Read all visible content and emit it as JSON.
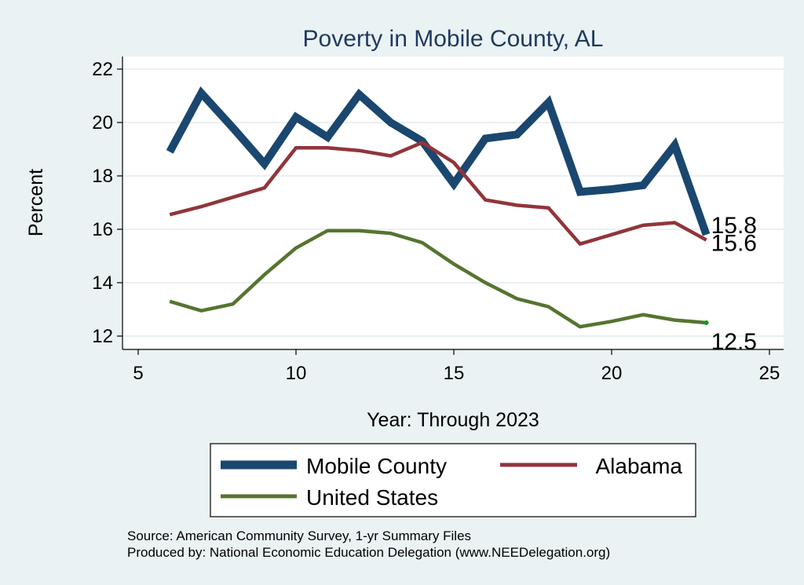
{
  "chart_data": {
    "type": "line",
    "title": "Poverty in Mobile County, AL",
    "xlabel": "Year: Through 2023",
    "ylabel": "Percent",
    "xlim": [
      5,
      25
    ],
    "ylim": [
      11.6,
      22.4
    ],
    "xticks": [
      5,
      10,
      15,
      20,
      25
    ],
    "yticks": [
      12,
      14,
      16,
      18,
      20,
      22
    ],
    "grid": true,
    "legend_position": "bottom",
    "series": [
      {
        "name": "Mobile County",
        "color": "#1a476f",
        "x": [
          6,
          7,
          8,
          9,
          10,
          11,
          12,
          13,
          14,
          15,
          16,
          17,
          18,
          19,
          20,
          21,
          22,
          23
        ],
        "values": [
          18.9,
          21.1,
          19.8,
          18.45,
          20.2,
          19.45,
          21.05,
          20.0,
          19.3,
          17.7,
          19.4,
          19.55,
          20.75,
          17.4,
          17.5,
          17.65,
          19.15,
          15.8
        ],
        "end_label": "15.8"
      },
      {
        "name": "Alabama",
        "color": "#90353b",
        "x": [
          6,
          7,
          8,
          9,
          10,
          11,
          12,
          13,
          14,
          15,
          16,
          17,
          18,
          19,
          20,
          21,
          22,
          23
        ],
        "values": [
          16.55,
          16.85,
          17.2,
          17.55,
          19.05,
          19.05,
          18.95,
          18.75,
          19.25,
          18.5,
          17.1,
          16.9,
          16.8,
          15.45,
          15.8,
          16.15,
          16.25,
          15.6
        ],
        "end_label": "15.6"
      },
      {
        "name": "United States",
        "color": "#55752f",
        "x": [
          6,
          7,
          8,
          9,
          10,
          11,
          12,
          13,
          14,
          15,
          16,
          17,
          18,
          19,
          20,
          21,
          22,
          23
        ],
        "values": [
          13.3,
          12.95,
          13.2,
          14.3,
          15.3,
          15.95,
          15.95,
          15.85,
          15.5,
          14.7,
          14.0,
          13.4,
          13.1,
          12.35,
          12.55,
          12.8,
          12.6,
          12.5
        ],
        "end_label": "12.5"
      }
    ]
  },
  "footer": {
    "source": "Source: American Community Survey, 1-yr Summary Files",
    "produced": "Produced by: National Economic Education Delegation (www.NEEDelegation.org)"
  }
}
